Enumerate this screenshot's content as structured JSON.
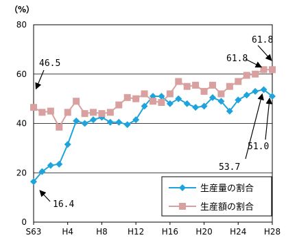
{
  "chart_data": {
    "type": "line",
    "unit_label": "（%）",
    "ylim": [
      0,
      80
    ],
    "yticks": [
      0,
      20,
      40,
      60,
      80
    ],
    "xtick_labels": [
      {
        "index": 0,
        "label": "S63"
      },
      {
        "index": 4,
        "label": "H4"
      },
      {
        "index": 8,
        "label": "H8"
      },
      {
        "index": 12,
        "label": "H12"
      },
      {
        "index": 16,
        "label": "H16"
      },
      {
        "index": 20,
        "label": "H20"
      },
      {
        "index": 24,
        "label": "H24"
      },
      {
        "index": 28,
        "label": "H28"
      }
    ],
    "grid": true,
    "legend_position": "bottom-right",
    "series": [
      {
        "name": "生産量の割合",
        "color": "#1ea3dc",
        "marker": "diamond",
        "values": [
          16.4,
          20.5,
          23.0,
          23.5,
          31.5,
          41.0,
          40.0,
          41.5,
          42.5,
          40.5,
          40.5,
          39.5,
          41.5,
          47.0,
          51.0,
          51.0,
          48.0,
          50.0,
          48.0,
          46.5,
          47.0,
          50.5,
          49.0,
          45.0,
          49.5,
          51.5,
          53.0,
          53.7,
          51.0
        ]
      },
      {
        "name": "生産額の割合",
        "color": "#d9a0a0",
        "marker": "square",
        "values": [
          46.5,
          44.5,
          45.0,
          38.5,
          44.5,
          49.0,
          44.0,
          44.5,
          44.0,
          44.5,
          47.5,
          50.5,
          50.0,
          52.0,
          49.0,
          48.5,
          52.0,
          57.0,
          55.0,
          55.5,
          53.0,
          55.5,
          52.0,
          55.0,
          57.0,
          59.5,
          60.0,
          61.8,
          61.8
        ]
      }
    ],
    "annotations": [
      {
        "text": "46.5",
        "series": 1,
        "index": 0
      },
      {
        "text": "16.4",
        "series": 0,
        "index": 0
      },
      {
        "text": "61.8",
        "series": 1,
        "index": 27
      },
      {
        "text": "61.8",
        "series": 1,
        "index": 28
      },
      {
        "text": "53.7",
        "series": 0,
        "index": 27
      },
      {
        "text": "51.0",
        "series": 0,
        "index": 28
      }
    ]
  }
}
